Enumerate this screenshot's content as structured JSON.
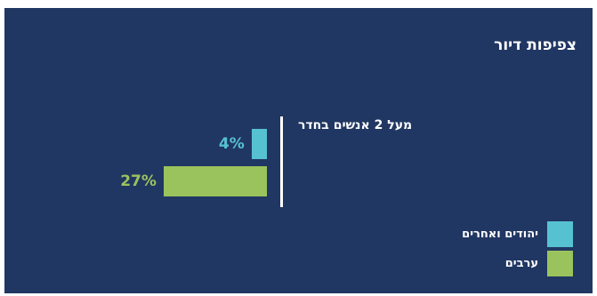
{
  "chart_data": {
    "type": "bar",
    "orientation": "horizontal",
    "title": "צפיפות דיור",
    "categories": [
      "מעל 2 אנשים בחדר"
    ],
    "series": [
      {
        "name": "יהודים ואחרים",
        "values": [
          4
        ],
        "color": "#56c2d1",
        "label": "4%"
      },
      {
        "name": "ערבים",
        "values": [
          27
        ],
        "color": "#9bc35d",
        "label": "27%"
      }
    ],
    "unit": "%",
    "legend_position": "bottom-right",
    "grid": false
  }
}
